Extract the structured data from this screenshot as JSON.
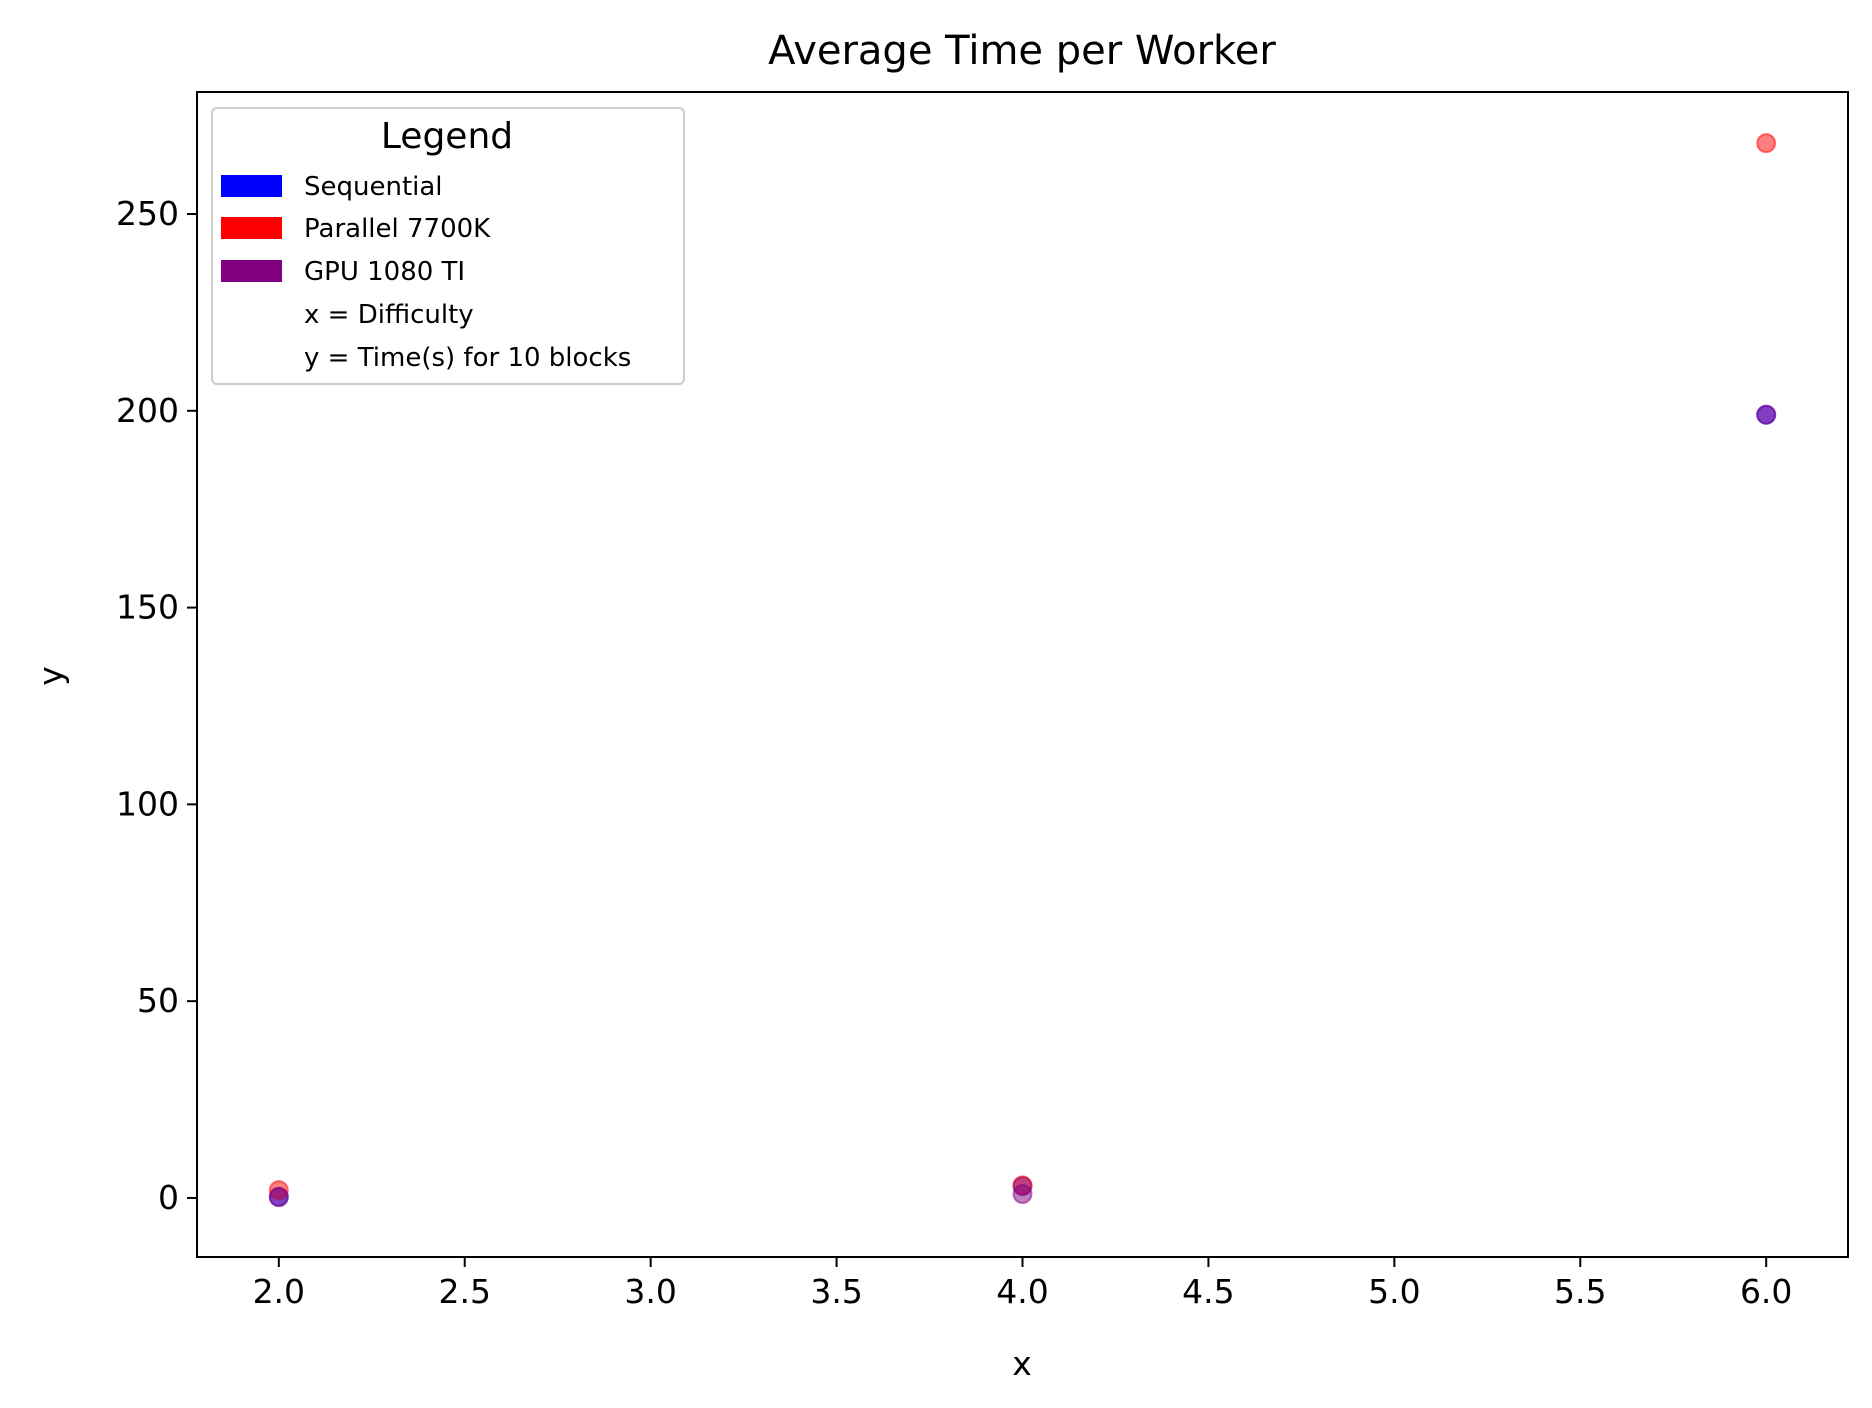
{
  "chart_data": {
    "type": "scatter",
    "title": "Average Time per Worker",
    "xlabel": "x",
    "ylabel": "y",
    "xlim": [
      1.78,
      6.22
    ],
    "ylim": [
      -15,
      281
    ],
    "xticks": [
      2.0,
      2.5,
      3.0,
      3.5,
      4.0,
      4.5,
      5.0,
      5.5,
      6.0
    ],
    "xtick_labels": [
      "2.0",
      "2.5",
      "3.0",
      "3.5",
      "4.0",
      "4.5",
      "5.0",
      "5.5",
      "6.0"
    ],
    "yticks": [
      0,
      50,
      100,
      150,
      200,
      250
    ],
    "ytick_labels": [
      "0",
      "50",
      "100",
      "150",
      "200",
      "250"
    ],
    "grid": false,
    "legend": {
      "title": "Legend",
      "placement": "top-left",
      "entries": [
        {
          "label": "Sequential",
          "color": "#0000ff"
        },
        {
          "label": "Parallel 7700K",
          "color": "#ff0000"
        },
        {
          "label": "GPU 1080 TI",
          "color": "#800080"
        },
        {
          "label": "x = Difficulty",
          "color": ""
        },
        {
          "label": "y = Time(s) for 10 blocks",
          "color": ""
        }
      ]
    },
    "series": [
      {
        "name": "Sequential",
        "color": "#0000ff",
        "x": [
          2,
          4,
          6
        ],
        "y": [
          0.3,
          3,
          199
        ]
      },
      {
        "name": "Parallel 7700K",
        "color": "#ff0000",
        "x": [
          2,
          4,
          6
        ],
        "y": [
          2,
          3.2,
          268
        ]
      },
      {
        "name": "GPU 1080 TI",
        "color": "#800080",
        "x": [
          2,
          4,
          6
        ],
        "y": [
          0.2,
          1,
          199
        ]
      }
    ]
  }
}
